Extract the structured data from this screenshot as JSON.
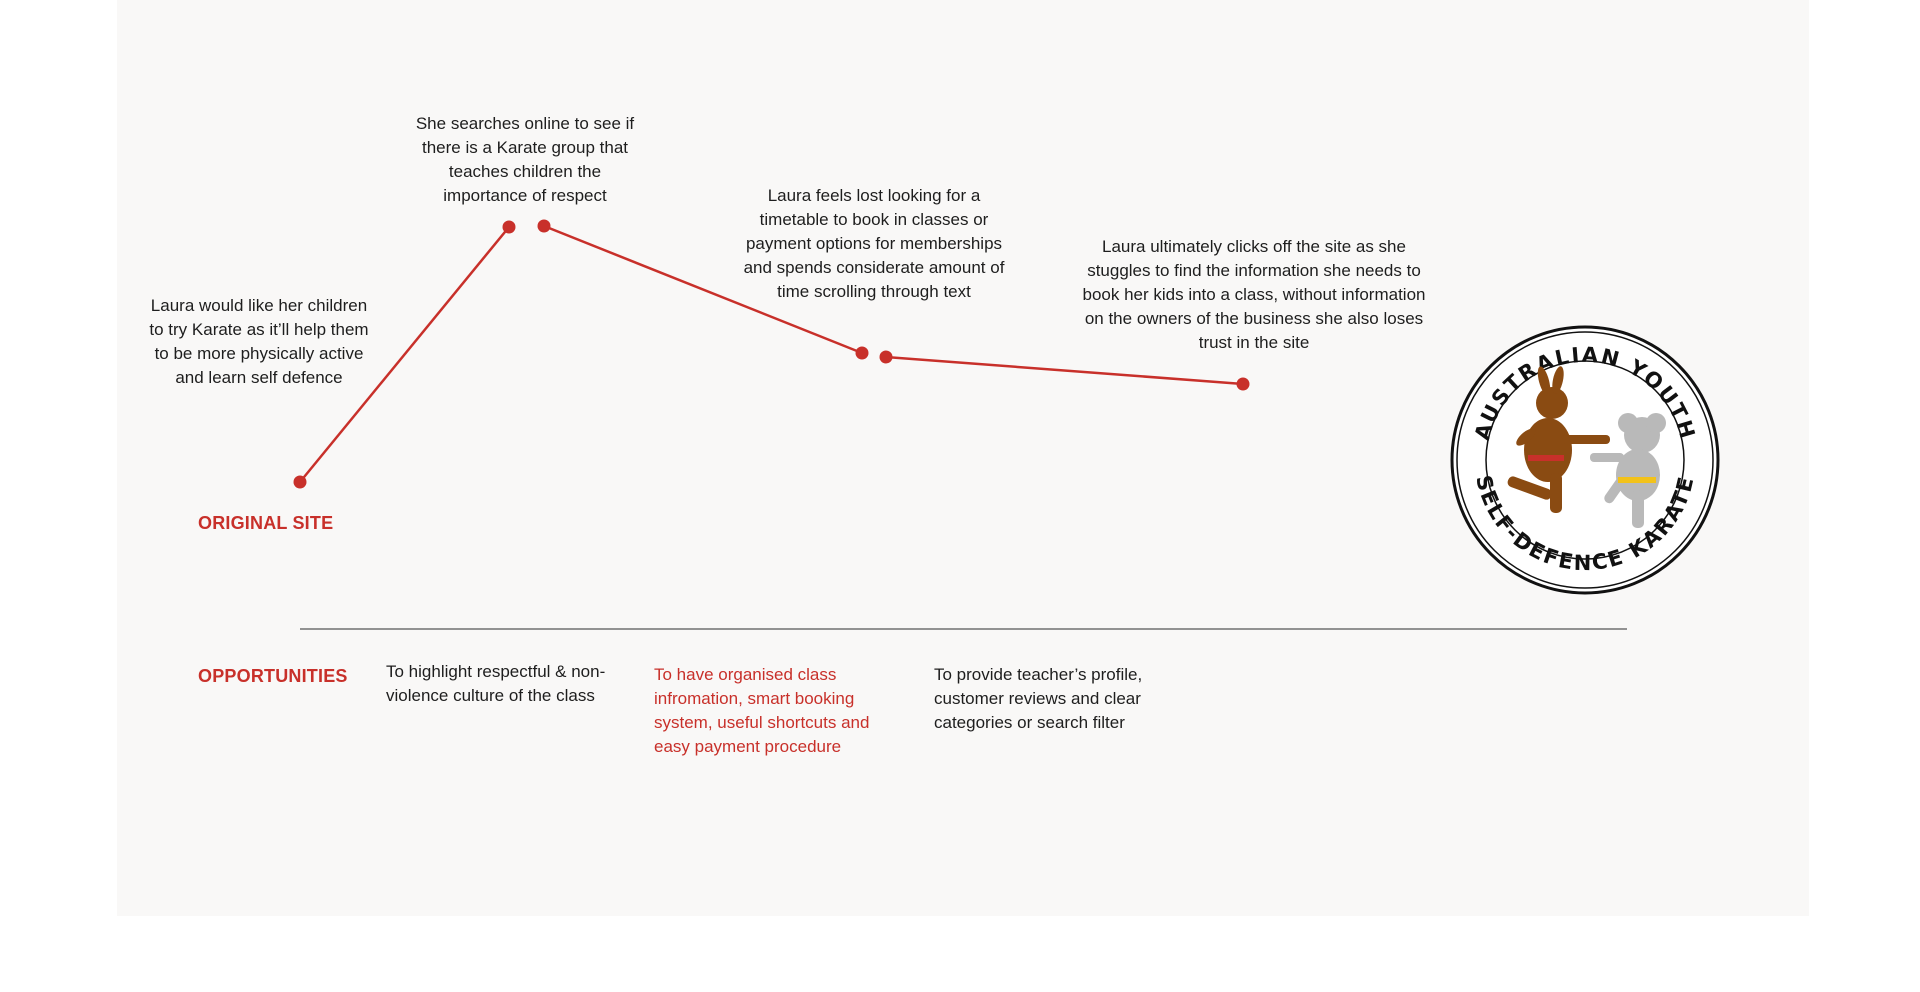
{
  "journey": {
    "steps": [
      "Laura would like her children to try Karate as it’ll help them to be more physically active and learn self defence",
      "She searches online to see if there is a Karate group that teaches children the importance of respect",
      "Laura feels lost looking for a timetable to book in classes or payment options for memberships and spends considerate amount of time scrolling through text",
      "Laura ultimately clicks off the site as she stuggles to find the information she needs to book her kids into a class, without information on the owners of the business she also loses trust in the site"
    ],
    "original_site_label": "ORIGINAL SITE",
    "opportunities_label": "OPPORTUNITIES",
    "opportunities": [
      "To highlight respectful & non-violence culture of the class",
      "To have organised class infromation, smart booking system, useful shortcuts and easy payment procedure",
      "To provide teacher’s profile, customer reviews and clear categories or search filter"
    ]
  },
  "logo": {
    "top_text": "AUSTRALIAN YOUTH",
    "bottom_text": "SELF-DEFENCE KARATE"
  },
  "colors": {
    "accent": "#c8302a",
    "panel": "#f9f8f7",
    "divider": "#555555"
  }
}
